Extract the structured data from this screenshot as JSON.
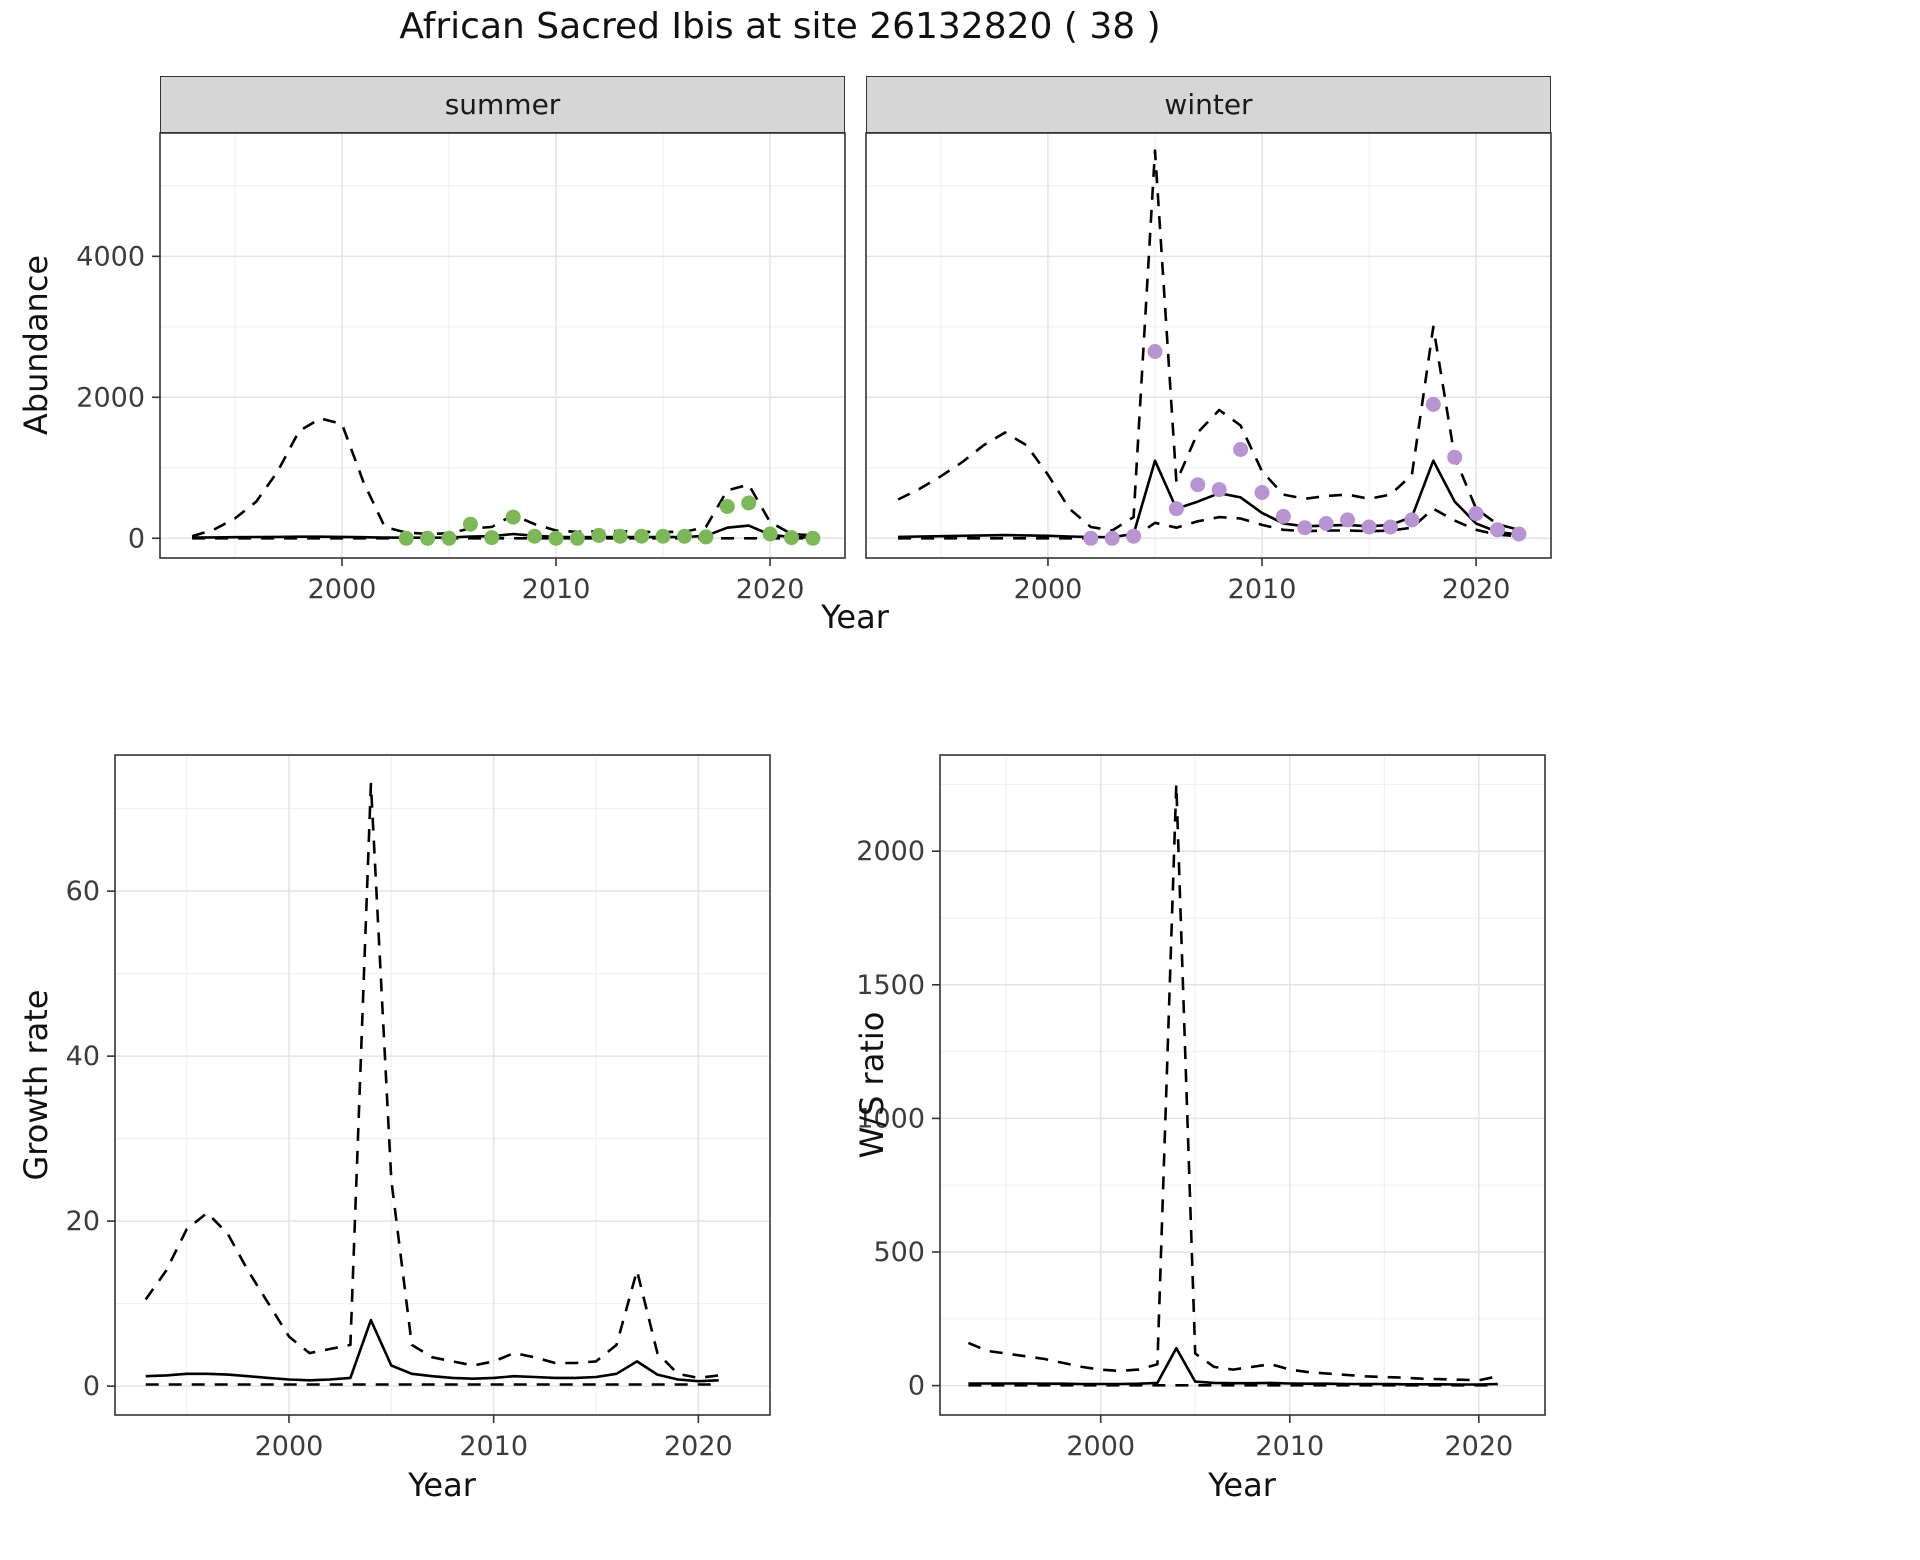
{
  "title": "African Sacred Ibis at site 26132820 ( 38 )",
  "facets": [
    "summer",
    "winter"
  ],
  "labels": {
    "abundance": "Abundance",
    "year": "Year",
    "growth_rate": "Growth rate",
    "ws_ratio": "W/S ratio"
  },
  "colors": {
    "summer_point": "#7db858",
    "winter_point": "#b894d2",
    "line": "#000000",
    "strip_bg": "#d6d6d6",
    "grid_major": "#e4e4e4",
    "grid_minor": "#f1f1f1",
    "panel_border": "#333333",
    "tick_label": "#3c3c3c"
  },
  "chart_data": [
    {
      "name": "abundance-summer",
      "type": "line",
      "facet": "summer",
      "xlabel": "Year",
      "ylabel": "Abundance",
      "xlim": [
        1991.5,
        2023.5
      ],
      "ylim": [
        -280,
        5750
      ],
      "xticks": [
        2000,
        2010,
        2020
      ],
      "xminor": [
        1995,
        2005,
        2015
      ],
      "yticks": [
        0,
        2000,
        4000
      ],
      "yminor": [
        1000,
        3000,
        5000
      ],
      "show_y_tick_labels": true,
      "series": [
        {
          "name": "upper-ci",
          "style": "dashed",
          "x": [
            1993,
            1994,
            1995,
            1996,
            1997,
            1998,
            1999,
            2000,
            2001,
            2002,
            2003,
            2004,
            2005,
            2006,
            2007,
            2008,
            2009,
            2010,
            2011,
            2012,
            2013,
            2014,
            2015,
            2016,
            2017,
            2018,
            2019,
            2020,
            2021,
            2022
          ],
          "y": [
            30,
            120,
            280,
            520,
            950,
            1520,
            1700,
            1620,
            800,
            160,
            80,
            60,
            70,
            140,
            160,
            330,
            200,
            110,
            90,
            100,
            100,
            90,
            90,
            90,
            160,
            680,
            760,
            230,
            60,
            40
          ]
        },
        {
          "name": "median",
          "style": "solid",
          "x": [
            1993,
            1994,
            1995,
            1996,
            1997,
            1998,
            1999,
            2000,
            2001,
            2002,
            2003,
            2004,
            2005,
            2006,
            2007,
            2008,
            2009,
            2010,
            2011,
            2012,
            2013,
            2014,
            2015,
            2016,
            2017,
            2018,
            2019,
            2020,
            2021,
            2022
          ],
          "y": [
            10,
            12,
            15,
            18,
            20,
            22,
            22,
            20,
            15,
            10,
            8,
            8,
            10,
            25,
            30,
            60,
            35,
            20,
            15,
            18,
            18,
            16,
            16,
            18,
            35,
            150,
            180,
            50,
            15,
            10
          ]
        },
        {
          "name": "lower-ci",
          "style": "dashed",
          "x": [
            1993,
            1994,
            1995,
            1996,
            1997,
            1998,
            1999,
            2000,
            2001,
            2002,
            2003,
            2004,
            2005,
            2006,
            2007,
            2008,
            2009,
            2010,
            2011,
            2012,
            2013,
            2014,
            2015,
            2016,
            2017,
            2018,
            2019,
            2020,
            2021,
            2022
          ],
          "y": [
            0,
            0,
            0,
            0,
            0,
            0,
            0,
            0,
            0,
            0,
            0,
            0,
            0,
            0,
            0,
            0,
            0,
            0,
            0,
            0,
            0,
            0,
            0,
            0,
            0,
            0,
            0,
            0,
            0,
            0
          ]
        },
        {
          "name": "observed-points",
          "style": "points",
          "color": "#7db858",
          "x": [
            2003,
            2004,
            2005,
            2006,
            2007,
            2008,
            2009,
            2010,
            2011,
            2012,
            2013,
            2014,
            2015,
            2016,
            2017,
            2018,
            2019,
            2020,
            2021,
            2022
          ],
          "y": [
            0,
            0,
            0,
            200,
            10,
            300,
            30,
            0,
            0,
            40,
            30,
            30,
            30,
            30,
            20,
            450,
            500,
            60,
            10,
            0
          ]
        }
      ]
    },
    {
      "name": "abundance-winter",
      "type": "line",
      "facet": "winter",
      "xlabel": "Year",
      "ylabel": "Abundance",
      "xlim": [
        1991.5,
        2023.5
      ],
      "ylim": [
        -280,
        5750
      ],
      "xticks": [
        2000,
        2010,
        2020
      ],
      "xminor": [
        1995,
        2005,
        2015
      ],
      "yticks": [
        0,
        2000,
        4000
      ],
      "yminor": [
        1000,
        3000,
        5000
      ],
      "show_y_tick_labels": false,
      "series": [
        {
          "name": "upper-ci",
          "style": "dashed",
          "x": [
            1993,
            1994,
            1995,
            1996,
            1997,
            1998,
            1999,
            2000,
            2001,
            2002,
            2003,
            2004,
            2005,
            2006,
            2007,
            2008,
            2009,
            2010,
            2011,
            2012,
            2013,
            2014,
            2015,
            2016,
            2017,
            2018,
            2019,
            2020,
            2021,
            2022
          ],
          "y": [
            550,
            700,
            880,
            1080,
            1320,
            1500,
            1320,
            900,
            420,
            160,
            110,
            300,
            5500,
            800,
            1500,
            1820,
            1600,
            950,
            620,
            560,
            600,
            620,
            560,
            620,
            900,
            3000,
            1150,
            420,
            200,
            120
          ]
        },
        {
          "name": "median",
          "style": "solid",
          "x": [
            1993,
            1994,
            1995,
            1996,
            1997,
            1998,
            1999,
            2000,
            2001,
            2002,
            2003,
            2004,
            2005,
            2006,
            2007,
            2008,
            2009,
            2010,
            2011,
            2012,
            2013,
            2014,
            2015,
            2016,
            2017,
            2018,
            2019,
            2020,
            2021,
            2022
          ],
          "y": [
            20,
            25,
            30,
            35,
            40,
            45,
            40,
            35,
            25,
            18,
            15,
            60,
            1100,
            420,
            520,
            640,
            580,
            360,
            210,
            170,
            180,
            190,
            170,
            190,
            300,
            1100,
            520,
            210,
            90,
            50
          ]
        },
        {
          "name": "lower-ci",
          "style": "dashed",
          "x": [
            1993,
            1994,
            1995,
            1996,
            1997,
            1998,
            1999,
            2000,
            2001,
            2002,
            2003,
            2004,
            2005,
            2006,
            2007,
            2008,
            2009,
            2010,
            2011,
            2012,
            2013,
            2014,
            2015,
            2016,
            2017,
            2018,
            2019,
            2020,
            2021,
            2022
          ],
          "y": [
            0,
            0,
            0,
            0,
            0,
            0,
            0,
            0,
            0,
            0,
            0,
            10,
            220,
            150,
            240,
            300,
            280,
            190,
            120,
            100,
            110,
            110,
            100,
            110,
            150,
            420,
            250,
            120,
            50,
            30
          ]
        },
        {
          "name": "observed-points",
          "style": "points",
          "color": "#b894d2",
          "x": [
            2002,
            2003,
            2004,
            2005,
            2006,
            2007,
            2008,
            2009,
            2010,
            2011,
            2012,
            2013,
            2014,
            2015,
            2016,
            2017,
            2018,
            2019,
            2020,
            2021,
            2022
          ],
          "y": [
            0,
            0,
            30,
            2650,
            420,
            760,
            690,
            1260,
            650,
            310,
            150,
            210,
            260,
            160,
            160,
            260,
            1900,
            1150,
            350,
            120,
            60
          ]
        }
      ]
    },
    {
      "name": "growth-rate",
      "type": "line",
      "xlabel": "Year",
      "ylabel": "Growth rate",
      "xlim": [
        1991.5,
        2023.5
      ],
      "ylim": [
        -3.5,
        76.5
      ],
      "xticks": [
        2000,
        2010,
        2020
      ],
      "xminor": [
        1995,
        2005,
        2015
      ],
      "yticks": [
        0,
        20,
        40,
        60
      ],
      "yminor": [
        10,
        30,
        50,
        70
      ],
      "show_y_tick_labels": true,
      "series": [
        {
          "name": "upper-ci",
          "style": "dashed",
          "x": [
            1993,
            1994,
            1995,
            1996,
            1997,
            1998,
            1999,
            2000,
            2001,
            2002,
            2003,
            2004,
            2005,
            2006,
            2007,
            2008,
            2009,
            2010,
            2011,
            2012,
            2013,
            2014,
            2015,
            2016,
            2017,
            2018,
            2019,
            2020,
            2021
          ],
          "y": [
            10.5,
            14,
            19,
            21,
            18.5,
            14,
            10,
            6,
            4,
            4.5,
            5,
            73,
            25,
            5,
            3.5,
            3,
            2.5,
            3,
            4,
            3.5,
            2.8,
            2.8,
            3,
            5,
            14,
            4,
            1.5,
            1,
            1.3
          ]
        },
        {
          "name": "median",
          "style": "solid",
          "x": [
            1993,
            1994,
            1995,
            1996,
            1997,
            1998,
            1999,
            2000,
            2001,
            2002,
            2003,
            2004,
            2005,
            2006,
            2007,
            2008,
            2009,
            2010,
            2011,
            2012,
            2013,
            2014,
            2015,
            2016,
            2017,
            2018,
            2019,
            2020,
            2021
          ],
          "y": [
            1.2,
            1.3,
            1.5,
            1.5,
            1.4,
            1.2,
            1.0,
            0.8,
            0.7,
            0.8,
            1.0,
            8,
            2.5,
            1.5,
            1.2,
            1.0,
            0.9,
            1.0,
            1.2,
            1.1,
            1.0,
            1.0,
            1.1,
            1.5,
            3.0,
            1.4,
            0.8,
            0.6,
            0.7
          ]
        },
        {
          "name": "lower-ci",
          "style": "dashed",
          "x": [
            1993,
            1994,
            1995,
            1996,
            1997,
            1998,
            1999,
            2000,
            2001,
            2002,
            2003,
            2004,
            2005,
            2006,
            2007,
            2008,
            2009,
            2010,
            2011,
            2012,
            2013,
            2014,
            2015,
            2016,
            2017,
            2018,
            2019,
            2020,
            2021
          ],
          "y": [
            0.2,
            0.2,
            0.2,
            0.2,
            0.2,
            0.2,
            0.2,
            0.2,
            0.2,
            0.2,
            0.2,
            0.2,
            0.2,
            0.2,
            0.2,
            0.2,
            0.2,
            0.2,
            0.2,
            0.2,
            0.2,
            0.2,
            0.2,
            0.2,
            0.2,
            0.2,
            0.2,
            0.2,
            0.2
          ]
        }
      ]
    },
    {
      "name": "ws-ratio",
      "type": "line",
      "xlabel": "Year",
      "ylabel": "W/S ratio",
      "xlim": [
        1991.5,
        2023.5
      ],
      "ylim": [
        -110,
        2360
      ],
      "xticks": [
        2000,
        2010,
        2020
      ],
      "xminor": [
        1995,
        2005,
        2015
      ],
      "yticks": [
        0,
        500,
        1000,
        1500,
        2000
      ],
      "yminor": [
        250,
        750,
        1250,
        1750,
        2250
      ],
      "show_y_tick_labels": true,
      "series": [
        {
          "name": "upper-ci",
          "style": "dashed",
          "x": [
            1993,
            1994,
            1995,
            1996,
            1997,
            1998,
            1999,
            2000,
            2001,
            2002,
            2003,
            2004,
            2005,
            2006,
            2007,
            2008,
            2009,
            2010,
            2011,
            2012,
            2013,
            2014,
            2015,
            2016,
            2017,
            2018,
            2019,
            2020,
            2021
          ],
          "y": [
            160,
            130,
            120,
            110,
            100,
            85,
            70,
            60,
            55,
            60,
            80,
            2250,
            120,
            70,
            60,
            70,
            80,
            60,
            50,
            45,
            40,
            35,
            32,
            30,
            26,
            24,
            22,
            20,
            35
          ]
        },
        {
          "name": "median",
          "style": "solid",
          "x": [
            1993,
            1994,
            1995,
            1996,
            1997,
            1998,
            1999,
            2000,
            2001,
            2002,
            2003,
            2004,
            2005,
            2006,
            2007,
            2008,
            2009,
            2010,
            2011,
            2012,
            2013,
            2014,
            2015,
            2016,
            2017,
            2018,
            2019,
            2020,
            2021
          ],
          "y": [
            8,
            8,
            8,
            8,
            7,
            7,
            6,
            6,
            6,
            7,
            10,
            140,
            15,
            10,
            9,
            9,
            10,
            8,
            7,
            7,
            6,
            6,
            6,
            5,
            5,
            5,
            4,
            4,
            6
          ]
        },
        {
          "name": "lower-ci",
          "style": "dashed",
          "x": [
            1993,
            1994,
            1995,
            1996,
            1997,
            1998,
            1999,
            2000,
            2001,
            2002,
            2003,
            2004,
            2005,
            2006,
            2007,
            2008,
            2009,
            2010,
            2011,
            2012,
            2013,
            2014,
            2015,
            2016,
            2017,
            2018,
            2019,
            2020,
            2021
          ],
          "y": [
            1,
            1,
            1,
            1,
            1,
            1,
            1,
            1,
            1,
            1,
            1,
            1,
            1,
            1,
            1,
            1,
            1,
            1,
            1,
            1,
            1,
            1,
            1,
            1,
            1,
            1,
            1,
            1,
            1
          ]
        }
      ]
    }
  ]
}
